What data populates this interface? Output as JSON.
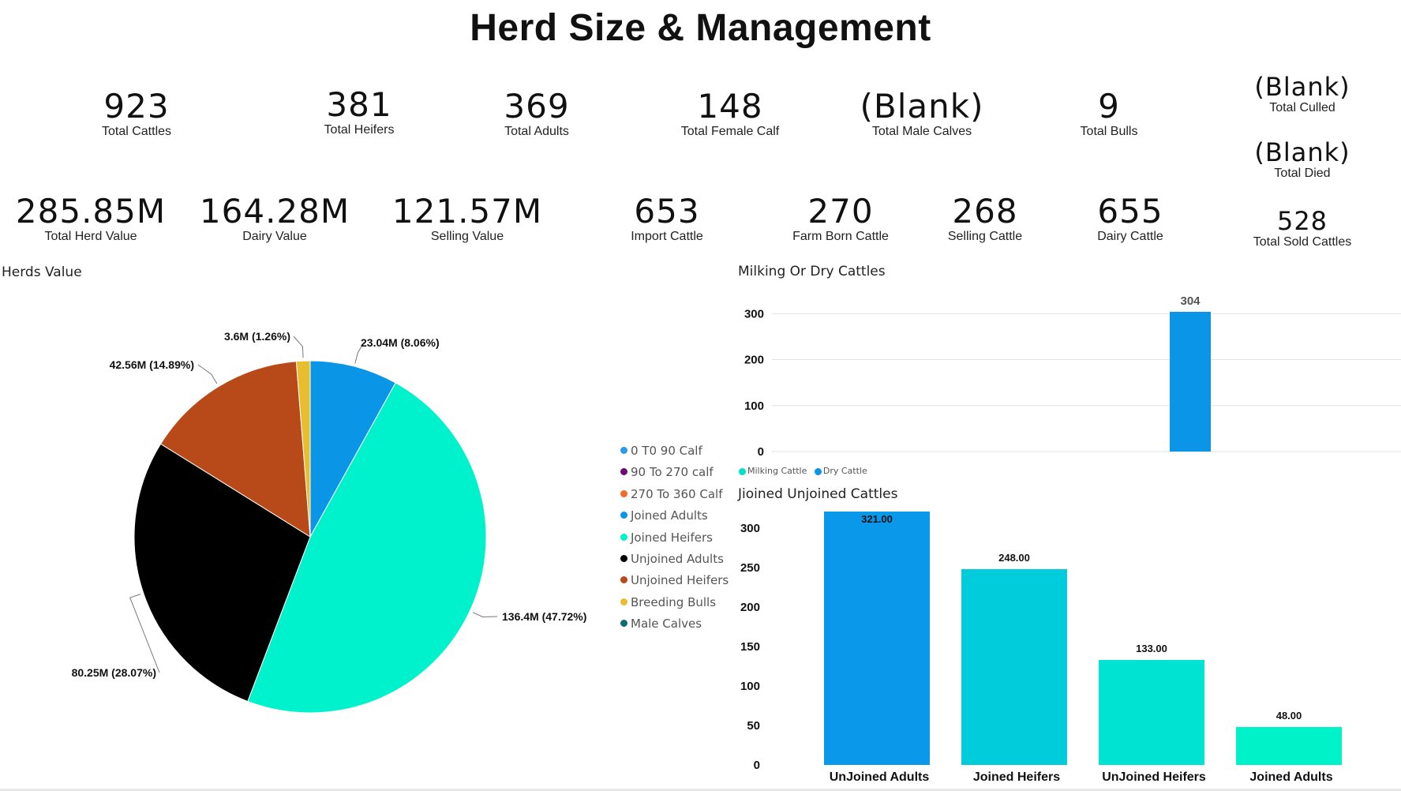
{
  "title": "Herd Size & Management",
  "kpis_row1": [
    {
      "value": "923",
      "label": "Total Cattles"
    },
    {
      "value": "381",
      "label": "Total Heifers"
    },
    {
      "value": "369",
      "label": "Total Adults"
    },
    {
      "value": "148",
      "label": "Total Female Calf"
    },
    {
      "value": "(Blank)",
      "label": "Total Male Calves"
    },
    {
      "value": "9",
      "label": "Total Bulls"
    }
  ],
  "kpis_side": [
    {
      "value": "(Blank)",
      "label": "Total Culled"
    },
    {
      "value": "(Blank)",
      "label": "Total Died"
    },
    {
      "value": "528",
      "label": "Total Sold Cattles"
    }
  ],
  "kpis_row2": [
    {
      "value": "285.85M",
      "label": "Total Herd Value"
    },
    {
      "value": "164.28M",
      "label": "Dairy Value"
    },
    {
      "value": "121.57M",
      "label": "Selling Value"
    },
    {
      "value": "653",
      "label": "Import Cattle"
    },
    {
      "value": "270",
      "label": "Farm Born Cattle"
    },
    {
      "value": "268",
      "label": "Selling Cattle"
    },
    {
      "value": "655",
      "label": "Dairy Cattle"
    }
  ],
  "chart_data": [
    {
      "type": "pie",
      "title": "Herds Value",
      "legend_position": "right",
      "legend": [
        {
          "name": "0 T0 90 Calf",
          "color": "#2b9be6"
        },
        {
          "name": "90 To 270 calf",
          "color": "#6a0d6e"
        },
        {
          "name": "270 To 360 Calf",
          "color": "#f26b2a"
        },
        {
          "name": "Joined Adults",
          "color": "#0a95e6"
        },
        {
          "name": "Joined Heifers",
          "color": "#00f2cc"
        },
        {
          "name": "Unjoined Adults",
          "color": "#000000"
        },
        {
          "name": "Unjoined Heifers",
          "color": "#b84a1a"
        },
        {
          "name": "Breeding Bulls",
          "color": "#e8bd2e"
        },
        {
          "name": "Male Calves",
          "color": "#0e6e6e"
        }
      ],
      "slices": [
        {
          "name": "Joined Adults",
          "value": 23.04,
          "percent": 8.06,
          "label": "23.04M (8.06%)",
          "color": "#0a95e6"
        },
        {
          "name": "Joined Heifers",
          "value": 136.4,
          "percent": 47.72,
          "label": "136.4M (47.72%)",
          "color": "#00f2cc"
        },
        {
          "name": "Unjoined Adults",
          "value": 80.25,
          "percent": 28.07,
          "label": "80.25M (28.07%)",
          "color": "#000000"
        },
        {
          "name": "Unjoined Heifers",
          "value": 42.56,
          "percent": 14.89,
          "label": "42.56M (14.89%)",
          "color": "#b84a1a"
        },
        {
          "name": "Breeding Bulls",
          "value": 3.6,
          "percent": 1.26,
          "label": "3.6M (1.26%)",
          "color": "#e8bd2e"
        }
      ]
    },
    {
      "type": "bar",
      "title": "Milking Or Dry Cattles",
      "categories": [
        "Milking Cattle",
        "Dry Cattle"
      ],
      "series": [
        {
          "name": "Milking Cattle",
          "values": [
            null,
            null
          ],
          "color": "#00e0c6"
        },
        {
          "name": "Dry Cattle",
          "values": [
            null,
            304
          ],
          "color": "#0a95e6"
        }
      ],
      "data_labels": [
        "304"
      ],
      "yticks": [
        0,
        100,
        200,
        300
      ],
      "ylim": [
        0,
        304
      ],
      "grid": true,
      "legend_position": "bottom-left"
    },
    {
      "type": "bar",
      "title": "Jioined Unjoined Cattles",
      "categories": [
        "UnJoined Adults",
        "Joined Heifers",
        "UnJoined Heifers",
        "Joined Adults"
      ],
      "values": [
        321.0,
        248.0,
        133.0,
        48.0
      ],
      "value_labels": [
        "321.00",
        "248.00",
        "133.00",
        "48.00"
      ],
      "colors": [
        "#0a99ea",
        "#00ccdb",
        "#00e3d2",
        "#00f2c9"
      ],
      "yticks": [
        0,
        50,
        100,
        150,
        200,
        250,
        300
      ],
      "ylim": [
        0,
        321
      ],
      "grid": false
    }
  ]
}
